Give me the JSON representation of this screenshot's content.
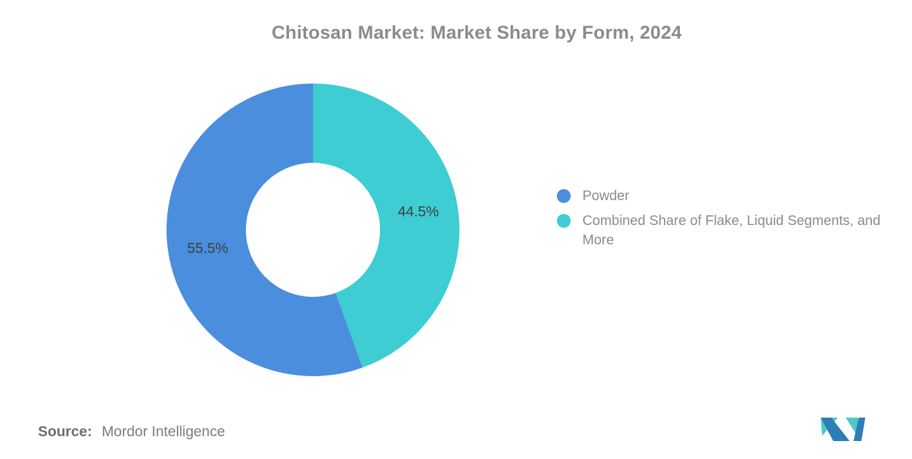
{
  "page": {
    "background_color": "#ffffff"
  },
  "chart_data": {
    "type": "pie",
    "donut": true,
    "title": "Chitosan Market: Market Share by Form, 2024",
    "title_color": "#8b8b8b",
    "label_color": "#3f3f3f",
    "inner_radius_ratio": 0.458,
    "start_angle": "top",
    "direction": "counterclockwise",
    "legend_position": "right",
    "slices": [
      {
        "label": "Powder",
        "value": 55.5,
        "value_label": "55.5%",
        "color": "#4a8edd"
      },
      {
        "label": "Combined Share of Flake, Liquid Segments, and More",
        "value": 44.5,
        "value_label": "44.5%",
        "color": "#3dcdd2"
      }
    ]
  },
  "source": {
    "label": "Source:",
    "value": "Mordor Intelligence"
  },
  "logo": {
    "name": "mordor-intelligence-logo",
    "colors": {
      "blue": "#2e7db8",
      "teal": "#4cc8c8"
    }
  }
}
